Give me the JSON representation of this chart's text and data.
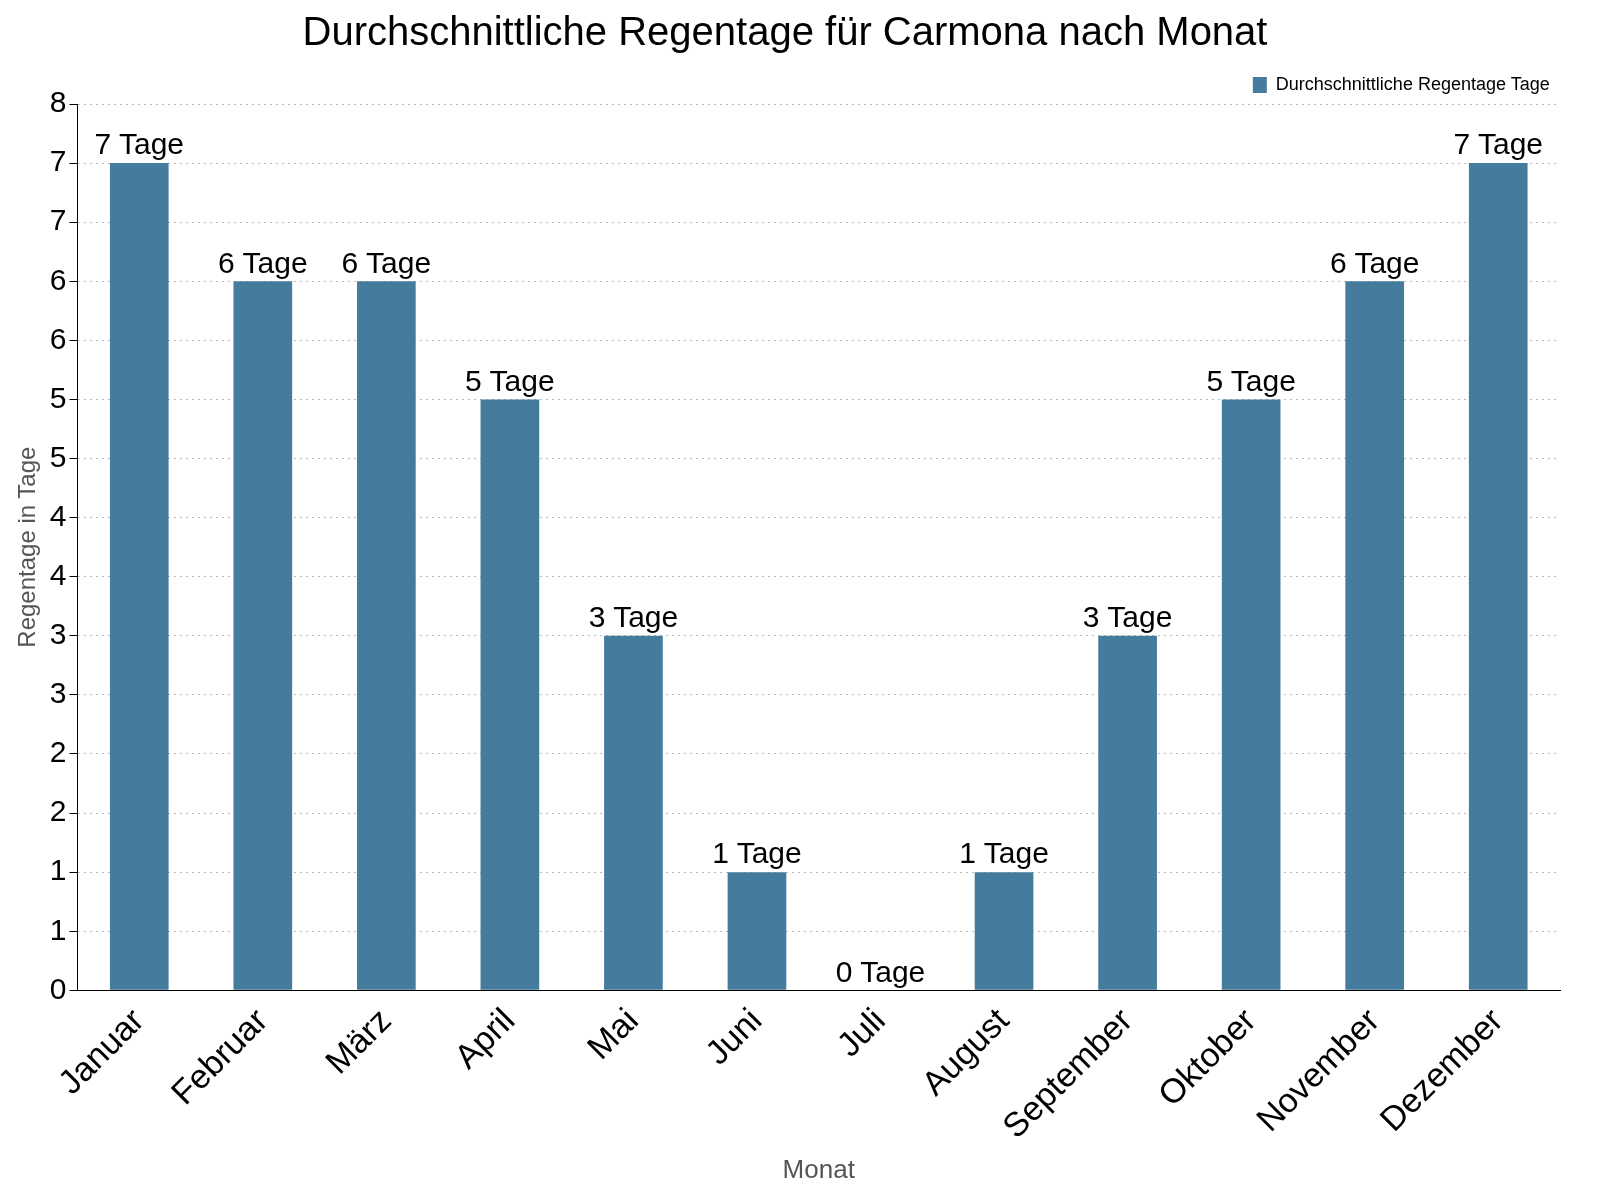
{
  "chart_data": {
    "type": "bar",
    "title": "Durchschnittliche Regentage für Carmona nach Monat",
    "xlabel": "Monat",
    "ylabel": "Regentage in Tage",
    "categories": [
      "Januar",
      "Februar",
      "März",
      "April",
      "Mai",
      "Juni",
      "Juli",
      "August",
      "September",
      "Oktober",
      "November",
      "Dezember"
    ],
    "series": [
      {
        "name": "Durchschnittliche Regentage Tage",
        "color": "#457b9d",
        "values": [
          7,
          6,
          6,
          5,
          3,
          1,
          0,
          1,
          3,
          5,
          6,
          7
        ],
        "value_labels": [
          "7 Tage",
          "6 Tage",
          "6 Tage",
          "5 Tage",
          "3 Tage",
          "1 Tage",
          "0 Tage",
          "1 Tage",
          "3 Tage",
          "5 Tage",
          "6 Tage",
          "7 Tage"
        ]
      }
    ],
    "ylim": [
      0,
      7.5
    ],
    "yticks": [
      0,
      {
        "value": 0.5,
        "label": "1"
      },
      1,
      {
        "value": 1.5,
        "label": "2"
      },
      2,
      {
        "value": 2.5,
        "label": "3"
      },
      3,
      {
        "value": 3.5,
        "label": "4"
      },
      4,
      {
        "value": 4.5,
        "label": "5"
      },
      5,
      {
        "value": 5.5,
        "label": "6"
      },
      6,
      {
        "value": 6.5,
        "label": "7"
      },
      7,
      {
        "value": 7.5,
        "label": "8"
      }
    ],
    "grid": "y",
    "legend": "top right"
  }
}
